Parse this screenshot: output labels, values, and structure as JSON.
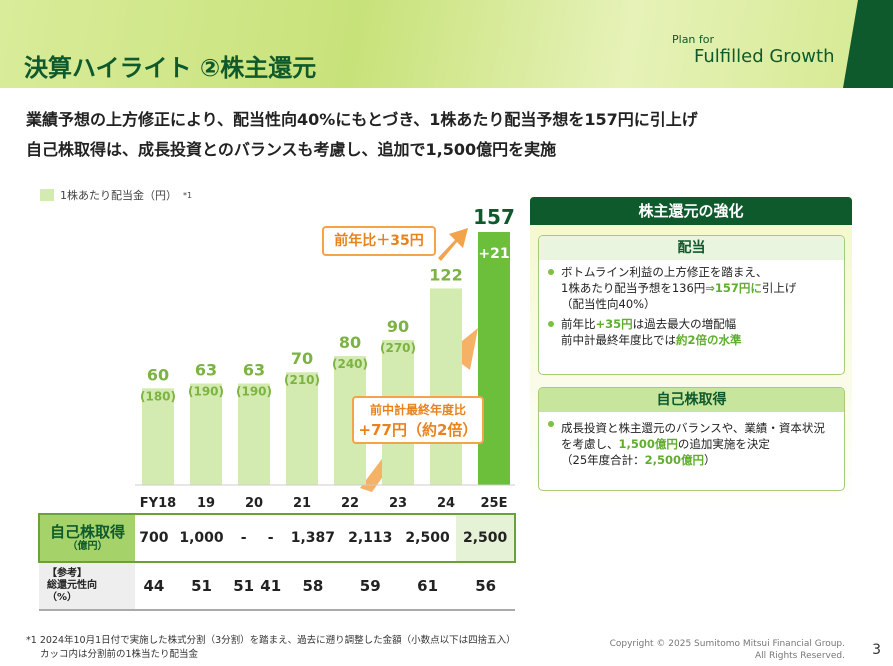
{
  "header": {
    "title": "決算ハイライト ②株主還元",
    "logo_line1": "Plan for",
    "logo_line2": "Fulfilled Growth"
  },
  "lead": [
    "業績予想の上方修正により、配当性向40%にもとづき、1株あたり配当予想を157円に引上げ",
    "自己株取得は、成長投資とのバランスも考慮し、追加で1,500億円を実施"
  ],
  "chart_data": {
    "type": "bar",
    "legend": "1株あたり配当金（円）",
    "legend_note": "*1",
    "categories": [
      "FY18",
      "19",
      "20",
      "21",
      "22",
      "23",
      "24",
      "25E"
    ],
    "values": [
      60,
      63,
      63,
      70,
      80,
      90,
      122,
      157
    ],
    "pre_split": [
      "(180)",
      "(190)",
      "(190)",
      "(210)",
      "(240)",
      "(270)",
      "",
      ""
    ],
    "increment_label": "+21",
    "ylim": [
      0,
      157
    ],
    "colors": {
      "bar": "#d3ebb0",
      "highlight": "#6cbf3a",
      "arrow": "#f3a34a"
    }
  },
  "callouts": {
    "yoy": "前年比＋35円",
    "vs_prev_plan_1": "前中計最終年度比",
    "vs_prev_plan_2": "+77円（約2倍）"
  },
  "table": {
    "row1_label": "自己株取得",
    "row1_unit": "（億円）",
    "row1": [
      "700",
      "1,000",
      "-",
      "-",
      "1,387",
      "2,113",
      "2,500",
      "2,500"
    ],
    "row2_label1": "【参考】",
    "row2_label2": "総還元性向",
    "row2_unit": "（%）",
    "row2": [
      "44",
      "51",
      "51",
      "41",
      "58",
      "59",
      "61",
      "56"
    ]
  },
  "panel": {
    "title": "株主還元の強化",
    "dividend": {
      "title": "配当",
      "b1a": "ボトムライン利益の上方修正を踏まえ、",
      "b1b": "1株あたり配当予想を136円",
      "b1c": "⇒157円に",
      "b1d": "引上げ",
      "b1e": "（配当性向40%）",
      "b2a": "前年比",
      "b2b": "+35円",
      "b2c": "は過去最大の増配幅",
      "b2d": "前中計最終年度比では",
      "b2e": "約2倍の水準"
    },
    "buyback": {
      "title": "自己株取得",
      "b1a": "成長投資と株主還元のバランスや、業績・資本状況を考慮し、",
      "b1b": "1,500億円",
      "b1c": "の追加実施を決定",
      "b1d": "（25年度合計：",
      "b1e": "2,500億円",
      "b1f": "）"
    }
  },
  "footer": {
    "note1": "*1 2024年10月1日付で実施した株式分割（3分割）を踏まえ、過去に遡り調整した金額（小数点以下は四捨五入）",
    "note2": "カッコ内は分割前の1株当たり配当金",
    "copyright1": "Copyright © 2025 Sumitomo Mitsui Financial Group.",
    "copyright2": "All Rights Reserved.",
    "page": "3"
  }
}
